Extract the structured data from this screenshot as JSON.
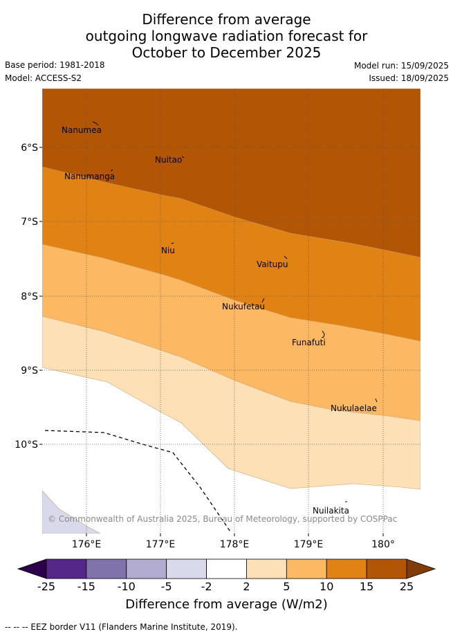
{
  "title": {
    "line1": "Difference from average",
    "line2": "outgoing longwave radiation forecast for",
    "line3": "October to December 2025"
  },
  "meta": {
    "base_period": "Base period: 1981-2018",
    "model": "Model: ACCESS-S2",
    "model_run": "Model run: 15/09/2025",
    "issued": "Issued: 18/09/2025"
  },
  "map": {
    "lat_labels": [
      "6°S",
      "7°S",
      "8°S",
      "9°S",
      "10°S"
    ],
    "lon_labels": [
      "176°E",
      "177°E",
      "178°E",
      "179°E",
      "180°"
    ],
    "places": [
      {
        "name": "Nanumea",
        "lon": 176.2,
        "lat": -5.67
      },
      {
        "name": "Nuitao",
        "lon": 177.3,
        "lat": -6.11
      },
      {
        "name": "Nanumanga",
        "lon": 176.33,
        "lat": -6.29
      },
      {
        "name": "Niu",
        "lon": 177.16,
        "lat": -7.29
      },
      {
        "name": "Vaitupu",
        "lon": 178.68,
        "lat": -7.48
      },
      {
        "name": "Nukufetau",
        "lon": 178.4,
        "lat": -8.03
      },
      {
        "name": "Funafuti",
        "lon": 179.19,
        "lat": -8.52
      },
      {
        "name": "Nukulaelae",
        "lon": 179.85,
        "lat": -9.39
      },
      {
        "name": "Nuilakita",
        "lon": 179.5,
        "lat": -10.78
      }
    ],
    "copyright": "© Commonwealth of Australia 2025, Bureau of Meteorology, supported by COSPPac",
    "colors": {
      "gt15": "#b25606",
      "10_15": "#e08214",
      "5_10": "#fdb863",
      "2_5": "#fee0b6",
      "neg2_2": "#ffffff",
      "neg5_neg2": "#d8daeb",
      "neg10_neg5": "#b2abd2",
      "neg15_neg10": "#8073ac",
      "neg25_neg15": "#542788",
      "lt_neg25": "#2d004b"
    }
  },
  "colorbar": {
    "ticks": [
      "-25",
      "-15",
      "-10",
      "-5",
      "-2",
      "2",
      "5",
      "10",
      "15",
      "25"
    ],
    "colors": [
      "#542788",
      "#8073ac",
      "#b2abd2",
      "#d8daeb",
      "#ffffff",
      "#fee0b6",
      "#fdb863",
      "#e08214",
      "#b25606"
    ],
    "under_color": "#2d004b",
    "over_color": "#7f3b08",
    "label": "Difference from average (W/m2)"
  },
  "footer": "--  --  -- EEZ border V11 (Flanders Marine Institute, 2019)."
}
